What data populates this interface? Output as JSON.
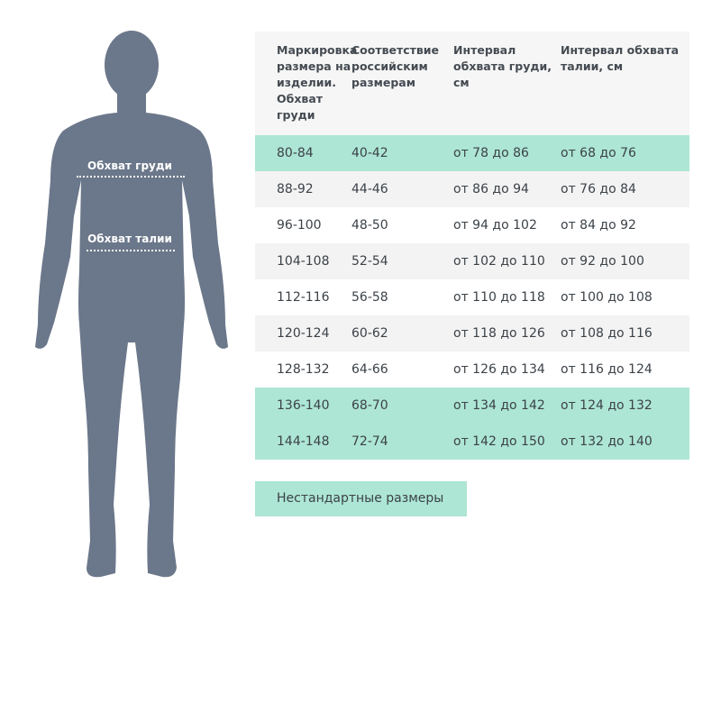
{
  "figure": {
    "chest_label": "Обхват груди",
    "waist_label": "Обхват талии",
    "silhouette_color": "#6b778a"
  },
  "table": {
    "headers": [
      "Маркировка размера на изделии. Обхват груди",
      "Соответствие российским размерам",
      "Интервал обхвата груди, см",
      "Интервал обхвата талии, см"
    ],
    "rows": [
      {
        "mark": "80-84",
        "ru": "40-42",
        "chest": "от 78 до 86",
        "waist": "от 68 до 76",
        "highlight": "teal"
      },
      {
        "mark": "88-92",
        "ru": "44-46",
        "chest": "от 86 до 94",
        "waist": "от 76 до 84",
        "highlight": "gray"
      },
      {
        "mark": "96-100",
        "ru": "48-50",
        "chest": "от 94 до 102",
        "waist": "от 84 до 92",
        "highlight": "white"
      },
      {
        "mark": "104-108",
        "ru": "52-54",
        "chest": "от 102 до 110",
        "waist": "от 92 до 100",
        "highlight": "gray"
      },
      {
        "mark": "112-116",
        "ru": "56-58",
        "chest": "от 110 до 118",
        "waist": "от 100 до 108",
        "highlight": "white"
      },
      {
        "mark": "120-124",
        "ru": "60-62",
        "chest": "от 118 до 126",
        "waist": "от 108 до 116",
        "highlight": "gray"
      },
      {
        "mark": "128-132",
        "ru": "64-66",
        "chest": "от 126 до 134",
        "waist": "от 116 до 124",
        "highlight": "white"
      },
      {
        "mark": "136-140",
        "ru": "68-70",
        "chest": "от 134 до 142",
        "waist": "от 124 до 132",
        "highlight": "teal"
      },
      {
        "mark": "144-148",
        "ru": "72-74",
        "chest": "от 142 до 150",
        "waist": "от 132 до 140",
        "highlight": "teal"
      }
    ],
    "colors": {
      "teal": "#ade6d4",
      "gray": "#f3f3f3",
      "header": "#f6f6f6"
    }
  },
  "nonstandard_button": "Нестандартные размеры"
}
